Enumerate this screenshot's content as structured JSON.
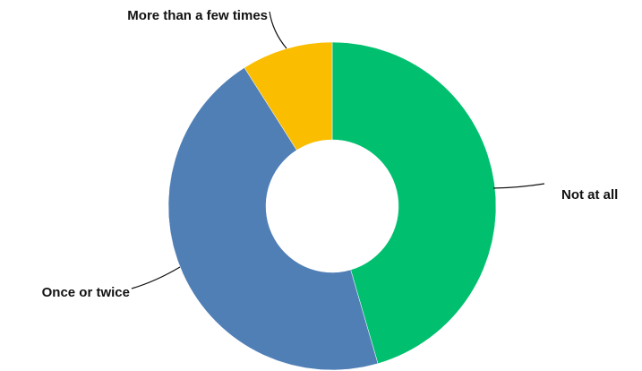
{
  "chart_data": {
    "type": "pie",
    "style": "donut",
    "title": "",
    "categories": [
      "Not at all",
      "Once or twice",
      "More than a few times"
    ],
    "values": [
      45.5,
      45.5,
      9.0
    ],
    "colors": [
      "#00C06F",
      "#507FB6",
      "#FABD00"
    ],
    "start_angle_deg": 0,
    "direction": "clockwise",
    "legend": "none",
    "labels_style": "outside-with-leader-lines"
  }
}
